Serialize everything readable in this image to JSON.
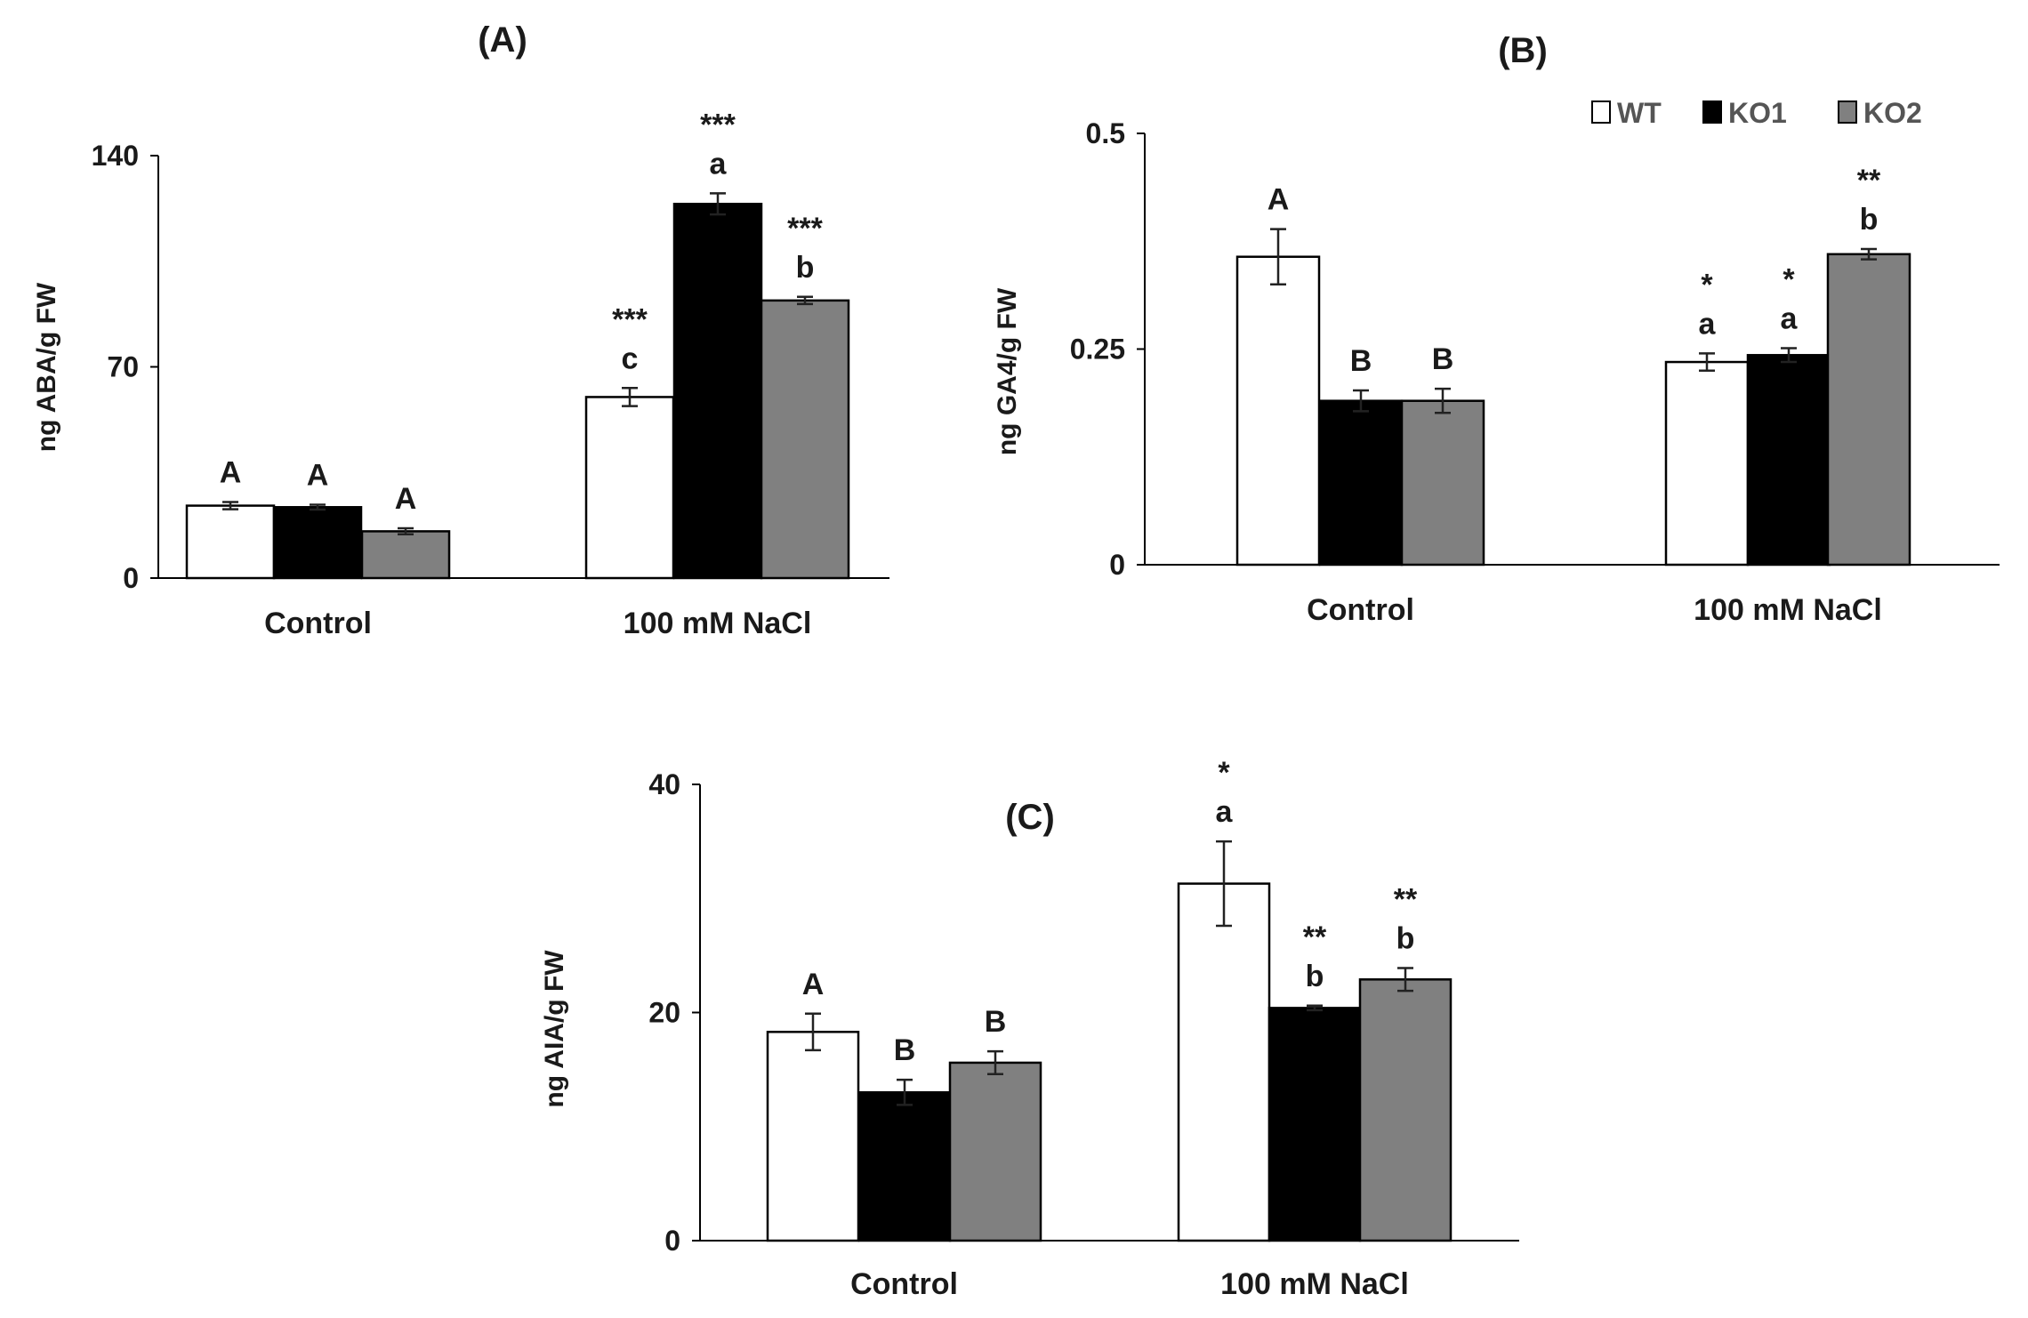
{
  "legend": [
    {
      "label": "WT",
      "color": "#ffffff"
    },
    {
      "label": "KO1",
      "color": "#000000"
    },
    {
      "label": "KO2",
      "color": "#808080"
    }
  ],
  "chart_data": [
    {
      "type": "bar",
      "title": "(A)",
      "ylabel": "ng ABA/g FW",
      "ylim": [
        0,
        140
      ],
      "yticks": [
        "0",
        "70",
        "140"
      ],
      "categories": [
        "Control",
        "100 mM NaCl"
      ],
      "series": [
        {
          "name": "WT",
          "values": [
            24,
            60
          ],
          "errors": [
            1.2,
            3
          ],
          "letters": [
            "A",
            "c"
          ],
          "stars": [
            "",
            "***"
          ]
        },
        {
          "name": "KO1",
          "values": [
            23.5,
            124
          ],
          "errors": [
            0.8,
            3.5
          ],
          "letters": [
            "A",
            "a"
          ],
          "stars": [
            "",
            "***"
          ]
        },
        {
          "name": "KO2",
          "values": [
            15.5,
            92
          ],
          "errors": [
            1,
            1.2
          ],
          "letters": [
            "A",
            "b"
          ],
          "stars": [
            "",
            "***"
          ]
        }
      ]
    },
    {
      "type": "bar",
      "title": "(B)",
      "ylabel": "ng GA4/g FW",
      "ylim": [
        0,
        0.5
      ],
      "yticks": [
        "0",
        "0.25",
        "0.5"
      ],
      "categories": [
        "Control",
        "100 mM NaCl"
      ],
      "series": [
        {
          "name": "WT",
          "values": [
            0.357,
            0.235
          ],
          "errors": [
            0.032,
            0.01
          ],
          "letters": [
            "A",
            "a"
          ],
          "stars": [
            "",
            "*"
          ]
        },
        {
          "name": "KO1",
          "values": [
            0.19,
            0.243
          ],
          "errors": [
            0.012,
            0.008
          ],
          "letters": [
            "B",
            "a"
          ],
          "stars": [
            "",
            "*"
          ]
        },
        {
          "name": "KO2",
          "values": [
            0.19,
            0.36
          ],
          "errors": [
            0.014,
            0.006
          ],
          "letters": [
            "B",
            "b"
          ],
          "stars": [
            "",
            "**"
          ]
        }
      ]
    },
    {
      "type": "bar",
      "title": "(C)",
      "ylabel": "ng AIA/g FW",
      "ylim": [
        0,
        40
      ],
      "yticks": [
        "0",
        "20",
        "40"
      ],
      "categories": [
        "Control",
        "100 mM NaCl"
      ],
      "series": [
        {
          "name": "WT",
          "values": [
            18.3,
            31.3
          ],
          "errors": [
            1.6,
            3.7
          ],
          "letters": [
            "A",
            "a"
          ],
          "stars": [
            "",
            "*"
          ]
        },
        {
          "name": "KO1",
          "values": [
            13,
            20.4
          ],
          "errors": [
            1.1,
            0.2
          ],
          "letters": [
            "B",
            "b"
          ],
          "stars": [
            "",
            "**"
          ]
        },
        {
          "name": "KO2",
          "values": [
            15.6,
            22.9
          ],
          "errors": [
            1,
            1
          ],
          "letters": [
            "B",
            "b"
          ],
          "stars": [
            "",
            "**"
          ]
        }
      ]
    }
  ]
}
